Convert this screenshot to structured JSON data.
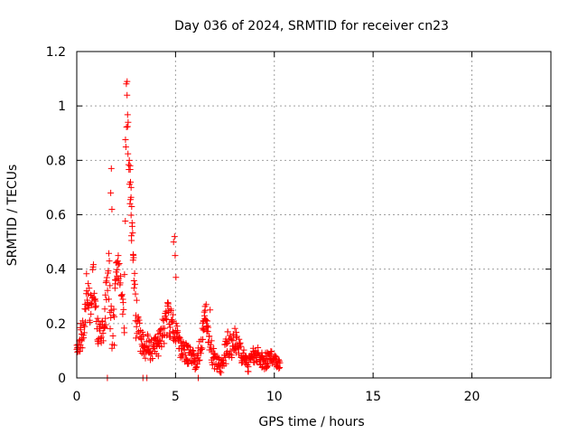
{
  "chart_data": {
    "type": "scatter",
    "title": "Day 036 of 2024, SRMTID for receiver cn23",
    "xlabel": "GPS time / hours",
    "ylabel": "SRMTID / TECUs",
    "xlim": [
      0,
      24
    ],
    "ylim": [
      0,
      1.2
    ],
    "xticks": [
      0,
      5,
      10,
      15,
      20
    ],
    "xtick_labels": [
      "0",
      "5",
      "10",
      "15",
      "20"
    ],
    "yticks": [
      0,
      0.2,
      0.4,
      0.6,
      0.8,
      1,
      1.2
    ],
    "ytick_labels": [
      "0",
      "0.2",
      "0.4",
      "0.6",
      "0.8",
      "1",
      "1.2"
    ],
    "grid": true,
    "marker": "+",
    "color": "#ff0000",
    "series": [
      {
        "name": "SRMTID",
        "profile": [
          [
            0.0,
            0.12,
            0.06
          ],
          [
            0.3,
            0.16,
            0.06
          ],
          [
            0.5,
            0.32,
            0.07
          ],
          [
            0.7,
            0.24,
            0.08
          ],
          [
            0.85,
            0.38,
            0.06
          ],
          [
            1.0,
            0.18,
            0.06
          ],
          [
            1.2,
            0.17,
            0.05
          ],
          [
            1.4,
            0.2,
            0.06
          ],
          [
            1.6,
            0.4,
            0.12
          ],
          [
            1.8,
            0.13,
            0.05
          ],
          [
            2.0,
            0.4,
            0.05
          ],
          [
            2.2,
            0.38,
            0.05
          ],
          [
            2.4,
            0.22,
            0.06
          ],
          [
            2.5,
            1.02,
            0.08
          ],
          [
            2.65,
            0.85,
            0.1
          ],
          [
            2.75,
            0.58,
            0.1
          ],
          [
            2.9,
            0.38,
            0.05
          ],
          [
            3.0,
            0.22,
            0.08
          ],
          [
            3.2,
            0.14,
            0.05
          ],
          [
            3.5,
            0.12,
            0.05
          ],
          [
            3.8,
            0.09,
            0.05
          ],
          [
            4.0,
            0.11,
            0.04
          ],
          [
            4.2,
            0.13,
            0.05
          ],
          [
            4.4,
            0.17,
            0.06
          ],
          [
            4.6,
            0.22,
            0.06
          ],
          [
            4.8,
            0.2,
            0.06
          ],
          [
            5.0,
            0.16,
            0.05
          ],
          [
            5.2,
            0.12,
            0.04
          ],
          [
            5.4,
            0.1,
            0.04
          ],
          [
            5.6,
            0.09,
            0.04
          ],
          [
            5.8,
            0.08,
            0.03
          ],
          [
            6.0,
            0.06,
            0.03
          ],
          [
            6.3,
            0.12,
            0.05
          ],
          [
            6.5,
            0.24,
            0.03
          ],
          [
            6.7,
            0.14,
            0.05
          ],
          [
            6.9,
            0.08,
            0.04
          ],
          [
            7.1,
            0.05,
            0.03
          ],
          [
            7.3,
            0.04,
            0.03
          ],
          [
            7.5,
            0.09,
            0.05
          ],
          [
            7.7,
            0.13,
            0.05
          ],
          [
            7.9,
            0.12,
            0.05
          ],
          [
            8.1,
            0.15,
            0.05
          ],
          [
            8.3,
            0.1,
            0.05
          ],
          [
            8.5,
            0.06,
            0.03
          ],
          [
            8.7,
            0.05,
            0.03
          ],
          [
            8.9,
            0.08,
            0.03
          ],
          [
            9.1,
            0.09,
            0.03
          ],
          [
            9.3,
            0.07,
            0.03
          ],
          [
            9.5,
            0.06,
            0.03
          ],
          [
            9.7,
            0.07,
            0.03
          ],
          [
            9.9,
            0.08,
            0.03
          ],
          [
            10.1,
            0.06,
            0.02
          ],
          [
            10.3,
            0.05,
            0.02
          ]
        ],
        "extra_points": [
          [
            1.55,
            0.0
          ],
          [
            1.75,
            0.77
          ],
          [
            1.72,
            0.68
          ],
          [
            1.78,
            0.62
          ],
          [
            1.9,
            0.12
          ],
          [
            2.1,
            0.45
          ],
          [
            2.55,
            1.09
          ],
          [
            2.6,
            0.94
          ],
          [
            2.7,
            0.78
          ],
          [
            2.72,
            0.72
          ],
          [
            2.75,
            0.7
          ],
          [
            2.78,
            0.63
          ],
          [
            2.8,
            0.57
          ],
          [
            3.35,
            0.0
          ],
          [
            3.55,
            0.0
          ],
          [
            4.95,
            0.52
          ],
          [
            4.9,
            0.5
          ],
          [
            4.98,
            0.45
          ],
          [
            5.02,
            0.37
          ],
          [
            6.15,
            0.0
          ],
          [
            6.55,
            0.27
          ],
          [
            6.75,
            0.25
          ]
        ]
      }
    ]
  }
}
